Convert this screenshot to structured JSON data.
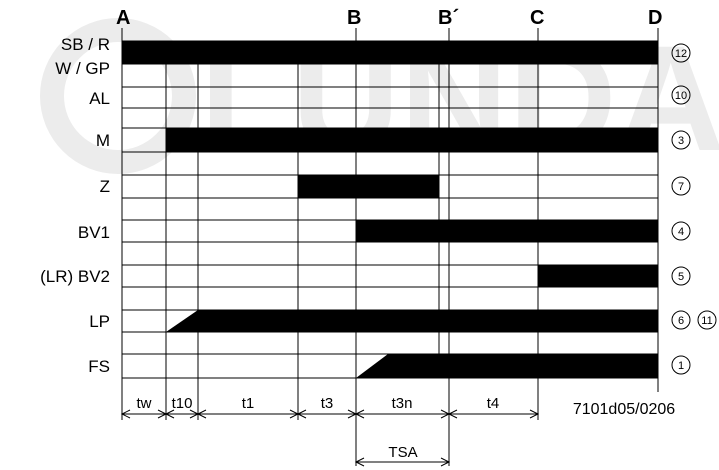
{
  "column_labels": [
    "A",
    "B",
    "B´",
    "C",
    "D"
  ],
  "rows": [
    {
      "label": "SB / R",
      "number": "12"
    },
    {
      "label": "W / GP",
      "number": ""
    },
    {
      "label": "AL",
      "number": "10"
    },
    {
      "label": "M",
      "number": "3"
    },
    {
      "label": "Z",
      "number": "7"
    },
    {
      "label": "BV1",
      "number": "4"
    },
    {
      "label": "(LR) BV2",
      "number": "5"
    },
    {
      "label": "LP",
      "number": "6",
      "number2": "11"
    },
    {
      "label": "FS",
      "number": "1"
    }
  ],
  "time_intervals": [
    "tw",
    "t10",
    "t1",
    "t3",
    "t3n",
    "t4"
  ],
  "tsa_label": "TSA",
  "reference": "7101d05/0206",
  "watermark": "LUNDA"
}
